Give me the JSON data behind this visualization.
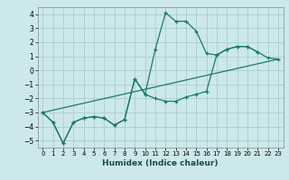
{
  "title": "",
  "xlabel": "Humidex (Indice chaleur)",
  "bg_color": "#cce8ea",
  "grid_color": "#aacdd0",
  "line_color": "#1a7a6a",
  "xlim": [
    -0.5,
    23.5
  ],
  "ylim": [
    -5.5,
    4.5
  ],
  "yticks": [
    -5,
    -4,
    -3,
    -2,
    -1,
    0,
    1,
    2,
    3,
    4
  ],
  "xticks": [
    0,
    1,
    2,
    3,
    4,
    5,
    6,
    7,
    8,
    9,
    10,
    11,
    12,
    13,
    14,
    15,
    16,
    17,
    18,
    19,
    20,
    21,
    22,
    23
  ],
  "line1_x": [
    0,
    1,
    2,
    3,
    4,
    5,
    6,
    7,
    8,
    9,
    10,
    11,
    12,
    13,
    14,
    15,
    16,
    17,
    18,
    19,
    20,
    21
  ],
  "line1_y": [
    -3.0,
    -3.7,
    -5.2,
    -3.7,
    -3.4,
    -3.3,
    -3.4,
    -3.9,
    -3.5,
    -0.6,
    -1.7,
    1.5,
    4.1,
    3.5,
    3.5,
    2.8,
    1.2,
    1.1,
    1.5,
    1.7,
    1.7,
    1.3
  ],
  "line2_x": [
    0,
    1,
    2,
    3,
    4,
    5,
    6,
    7,
    8,
    9,
    10,
    11,
    12,
    13,
    14,
    15,
    16,
    17,
    18,
    19,
    20,
    21,
    22,
    23
  ],
  "line2_y": [
    -3.0,
    -3.7,
    -5.2,
    -3.7,
    -3.4,
    -3.3,
    -3.4,
    -3.9,
    -3.5,
    -0.6,
    -1.7,
    -2.0,
    -2.2,
    -2.2,
    -1.9,
    -1.7,
    -1.5,
    1.1,
    1.5,
    1.7,
    1.7,
    1.3,
    0.9,
    0.8
  ],
  "line3_x": [
    0,
    23
  ],
  "line3_y": [
    -3.0,
    0.8
  ]
}
